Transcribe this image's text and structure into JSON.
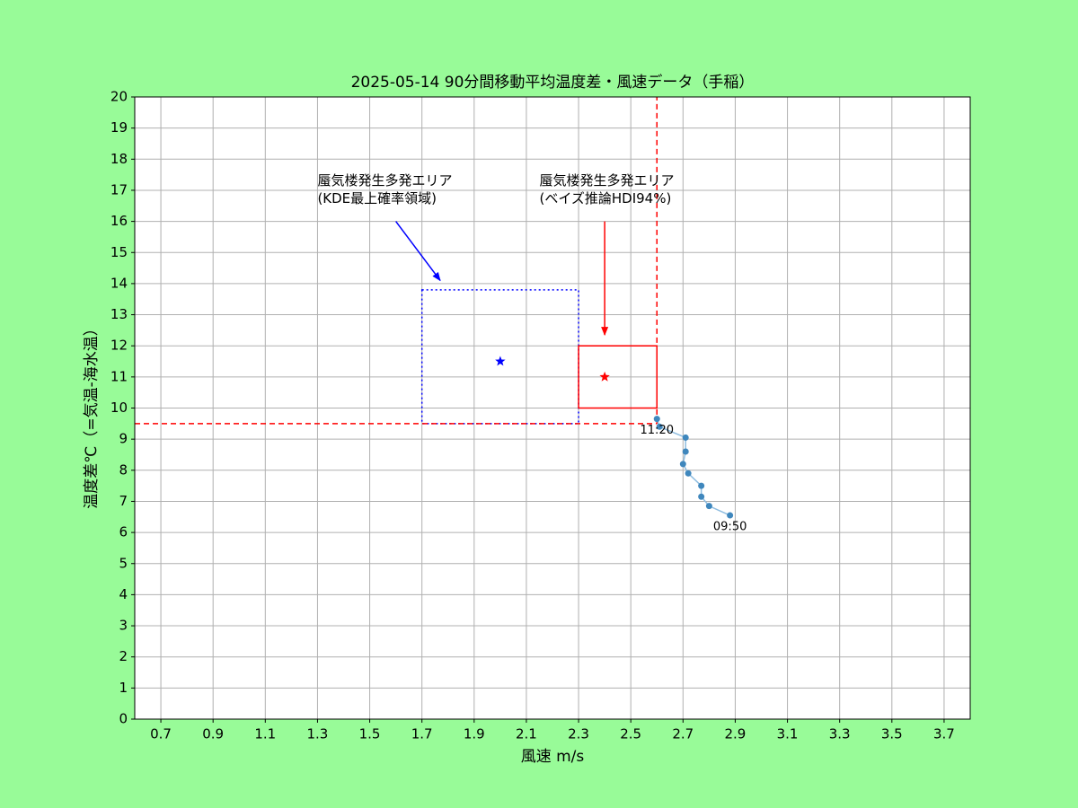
{
  "chart_data": {
    "type": "scatter",
    "title": "2025-05-14  90分間移動平均温度差・風速データ（手稲）",
    "x_label": "風速 m/s",
    "y_label": "温度差℃（=気温-海水温）",
    "xlim": [
      0.6,
      3.8
    ],
    "ylim": [
      0,
      20
    ],
    "xticks": [
      0.7,
      0.9,
      1.1,
      1.3,
      1.5,
      1.7,
      1.9,
      2.1,
      2.3,
      2.5,
      2.7,
      2.9,
      3.1,
      3.3,
      3.5,
      3.7
    ],
    "yticks": [
      0,
      1,
      2,
      3,
      4,
      5,
      6,
      7,
      8,
      9,
      10,
      11,
      12,
      13,
      14,
      15,
      16,
      17,
      18,
      19,
      20
    ],
    "grid": true,
    "series": [
      {
        "color": "#3f87bd",
        "line_color": "#8fbde0",
        "x": [
          2.88,
          2.8,
          2.77,
          2.77,
          2.72,
          2.7,
          2.71,
          2.71,
          2.61,
          2.6
        ],
        "values": [
          6.55,
          6.85,
          7.15,
          7.5,
          7.9,
          8.2,
          8.6,
          9.05,
          9.4,
          9.65
        ],
        "labels": [
          "09:50",
          null,
          null,
          null,
          null,
          null,
          null,
          null,
          null,
          "11:20"
        ]
      }
    ],
    "regions": [
      {
        "x0": 1.7,
        "x1": 2.3,
        "y0": 9.5,
        "y1": 13.8,
        "color": "#0000ff",
        "style": "dotted",
        "star": [
          2.0,
          11.5
        ],
        "text": [
          "蜃気楼発生多発エリア",
          "(KDE最上確率領域)"
        ],
        "text_xy": [
          1.3,
          17.3
        ],
        "arrow_from": [
          1.6,
          16
        ],
        "arrow_to": [
          1.77,
          14.1
        ]
      },
      {
        "x0": 2.3,
        "x1": 2.6,
        "y0": 10,
        "y1": 12,
        "color": "#ff0000",
        "style": "solid",
        "star": [
          2.4,
          11.0
        ],
        "text": [
          "蜃気楼発生多発エリア",
          "(ベイズ推論HDI94%)"
        ],
        "text_xy": [
          2.15,
          17.3
        ],
        "arrow_from": [
          2.4,
          16
        ],
        "arrow_to": [
          2.4,
          12.35
        ]
      }
    ],
    "ref_lines": [
      {
        "y": 9.5,
        "x_to": 2.6,
        "color": "#ff0000"
      },
      {
        "x": 2.6,
        "y_from": 9.5,
        "color": "#ff0000"
      }
    ]
  }
}
